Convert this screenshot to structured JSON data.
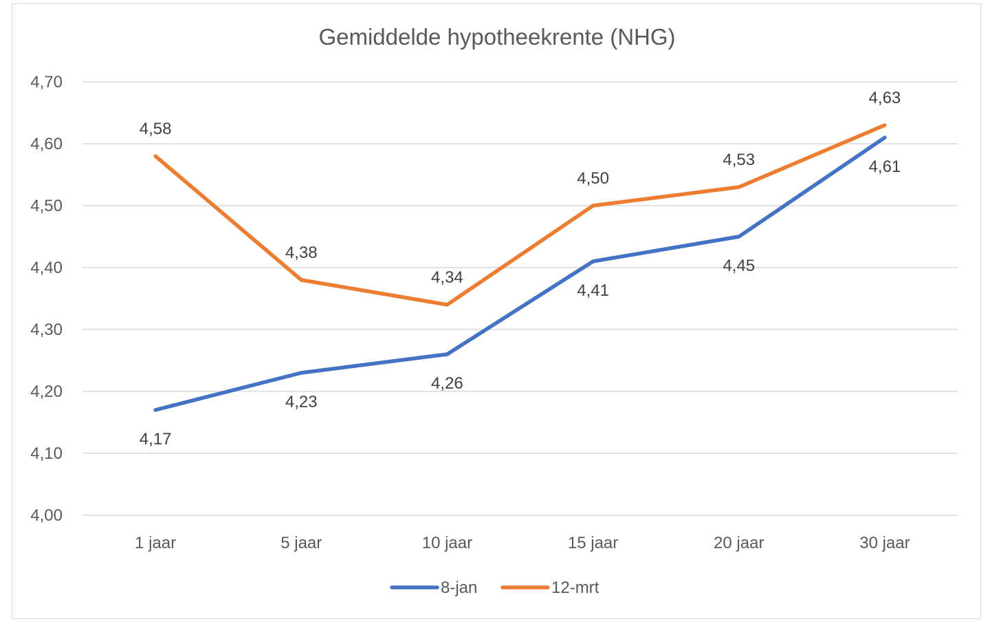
{
  "chart_data": {
    "type": "line",
    "title": "Gemiddelde hypotheekrente (NHG)",
    "xlabel": "",
    "ylabel": "",
    "categories": [
      "1 jaar",
      "5 jaar",
      "10 jaar",
      "15 jaar",
      "20 jaar",
      "30 jaar"
    ],
    "series": [
      {
        "name": "8-jan",
        "color": "#4472c4",
        "values": [
          4.17,
          4.23,
          4.26,
          4.41,
          4.45,
          4.61
        ],
        "labels": [
          "4,17",
          "4,23",
          "4,26",
          "4,41",
          "4,45",
          "4,61"
        ],
        "label_position": "below"
      },
      {
        "name": "12-mrt",
        "color": "#ed7d31",
        "values": [
          4.58,
          4.38,
          4.34,
          4.5,
          4.53,
          4.63
        ],
        "labels": [
          "4,58",
          "4,38",
          "4,34",
          "4,50",
          "4,53",
          "4,63"
        ],
        "label_position": "above"
      }
    ],
    "ylim": [
      4.0,
      4.7
    ],
    "yticks": [
      4.0,
      4.1,
      4.2,
      4.3,
      4.4,
      4.5,
      4.6,
      4.7
    ],
    "ytick_labels": [
      "4,00",
      "4,10",
      "4,20",
      "4,30",
      "4,40",
      "4,50",
      "4,60",
      "4,70"
    ],
    "grid": true,
    "grid_color": "#d9d9d9",
    "legend_position": "bottom"
  }
}
